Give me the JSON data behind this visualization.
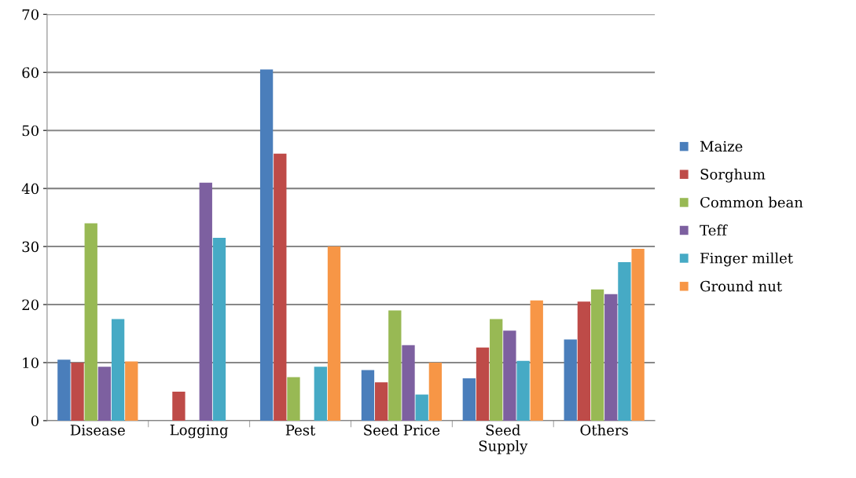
{
  "chart_data": {
    "type": "bar",
    "categories": [
      "Disease",
      "Logging",
      "Pest",
      "Seed Price",
      "Seed\nSupply",
      "Others"
    ],
    "series": [
      {
        "name": "Maize",
        "color": "#4a7ebb",
        "values": [
          10.5,
          null,
          60.5,
          8.7,
          7.3,
          14
        ]
      },
      {
        "name": "Sorghum",
        "color": "#be4b48",
        "values": [
          10,
          5,
          46,
          6.6,
          12.6,
          20.5
        ]
      },
      {
        "name": "Common bean",
        "color": "#98b954",
        "values": [
          34,
          null,
          7.5,
          19,
          17.5,
          22.6
        ]
      },
      {
        "name": "Teff",
        "color": "#7d60a0",
        "values": [
          9.3,
          41,
          null,
          13,
          15.5,
          21.8
        ]
      },
      {
        "name": "Finger millet",
        "color": "#46aac5",
        "values": [
          17.5,
          31.5,
          9.3,
          4.5,
          10.3,
          27.3
        ]
      },
      {
        "name": "Ground nut",
        "color": "#f79646",
        "values": [
          10.2,
          null,
          30,
          10,
          20.7,
          29.6
        ]
      }
    ],
    "ylim": [
      0,
      70
    ],
    "yticks": [
      0,
      10,
      20,
      30,
      40,
      50,
      60,
      70
    ],
    "grid": "y",
    "legend": "right"
  }
}
